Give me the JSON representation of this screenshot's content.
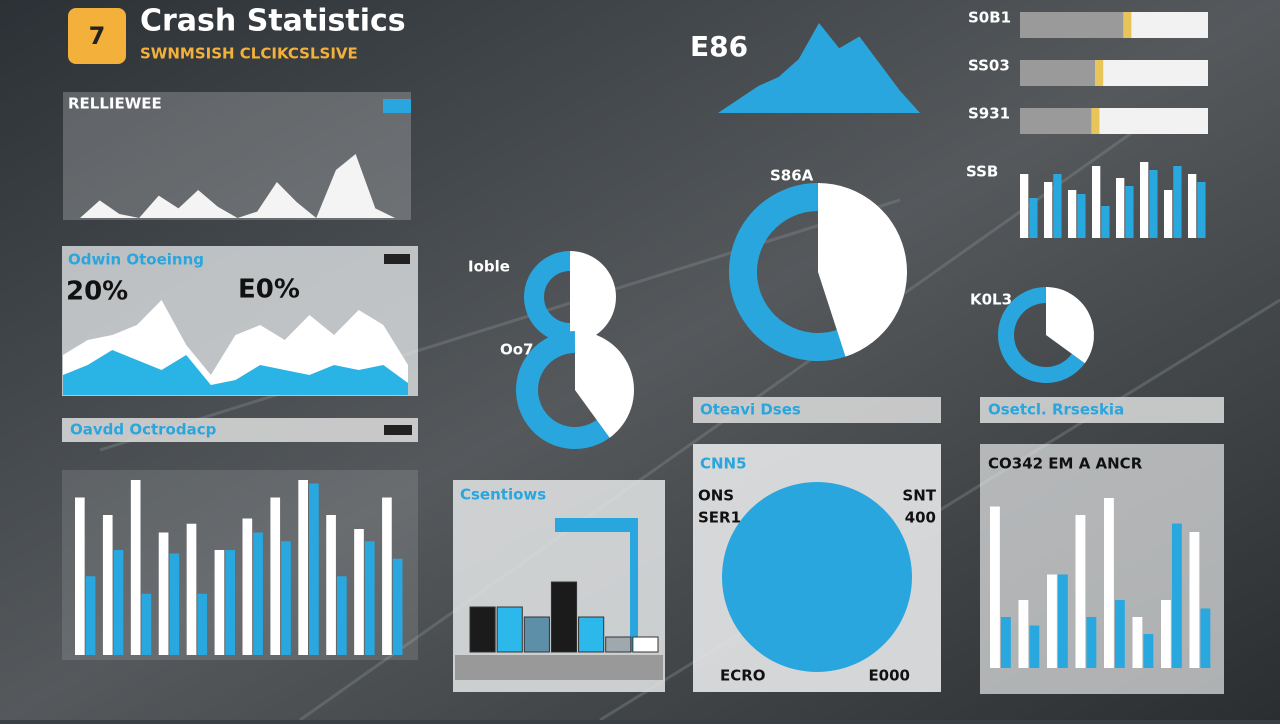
{
  "header": {
    "icon": "7",
    "title": "Crash Statistics",
    "subtitle": "SWNMSISH CLCIKCSLSIVE"
  },
  "trend_panel": {
    "title": "RELLIEWEE",
    "values": [
      0,
      22,
      5,
      0,
      28,
      12,
      35,
      14,
      0,
      8,
      45,
      20,
      0,
      60,
      80,
      12,
      0
    ]
  },
  "share_panel": {
    "title": "Odwin Otoeinng",
    "left_value": "20%",
    "right_value": "E0%",
    "white_values": [
      40,
      55,
      60,
      70,
      95,
      50,
      20,
      60,
      70,
      55,
      80,
      60,
      85,
      70,
      30
    ],
    "blue_values": [
      20,
      30,
      45,
      35,
      25,
      40,
      10,
      15,
      30,
      25,
      20,
      30,
      25,
      30,
      12
    ]
  },
  "daily_panel": {
    "title": "Oavdd Octrodacp",
    "series": [
      {
        "color": "#ffffff",
        "values": [
          90,
          80,
          100,
          70,
          75,
          60,
          78,
          90,
          100,
          80,
          72,
          90
        ]
      },
      {
        "color": "#29a8e0",
        "values": [
          45,
          60,
          35,
          58,
          35,
          60,
          70,
          65,
          98,
          45,
          65,
          55
        ]
      }
    ]
  },
  "peak_panel": {
    "label": "E86",
    "values": [
      0,
      15,
      30,
      40,
      60,
      100,
      72,
      85,
      55,
      25,
      0
    ]
  },
  "donuts": [
    {
      "label": "S86A",
      "value": 45
    },
    {
      "label": "Ioble",
      "value": 50
    },
    {
      "label": "Oo7",
      "value": 40
    },
    {
      "label": "K0L3",
      "value": 35
    }
  ],
  "progress": [
    {
      "label": "S0B1",
      "value": 55
    },
    {
      "label": "SS03",
      "value": 40
    },
    {
      "label": "S931",
      "value": 38
    }
  ],
  "mini_bars": {
    "label": "SSB",
    "series": [
      {
        "color": "#ffffff",
        "values": [
          80,
          70,
          60,
          90,
          75,
          95,
          60,
          80
        ]
      },
      {
        "color": "#29a8e0",
        "values": [
          50,
          80,
          55,
          40,
          65,
          85,
          90,
          70
        ]
      }
    ]
  },
  "category_panel": {
    "title": "Csentiows",
    "values": [
      45,
      45,
      35,
      70,
      35,
      15,
      15
    ],
    "colors": [
      "#1b1b1b",
      "#2cb8ea",
      "#5d8fa8",
      "#1b1b1b",
      "#2cb8ea",
      "#9fa9ad",
      "#ffffff"
    ]
  },
  "pie_panel": {
    "header": "Oteavi Dses",
    "title": "CNN5",
    "left_labels": [
      "ONS",
      "SER1"
    ],
    "right_labels": [
      "SNT",
      "400"
    ],
    "footer_left": "ECRO",
    "footer_right": "E000"
  },
  "compare_panel": {
    "header": "Osetcl. Rrseskia",
    "title": "CO342 EM A ANCR",
    "series": [
      {
        "color": "#ffffff",
        "values": [
          95,
          40,
          55,
          90,
          100,
          30,
          40,
          80
        ]
      },
      {
        "color": "#29a8e0",
        "values": [
          30,
          25,
          55,
          30,
          40,
          20,
          85,
          35
        ]
      }
    ]
  }
}
